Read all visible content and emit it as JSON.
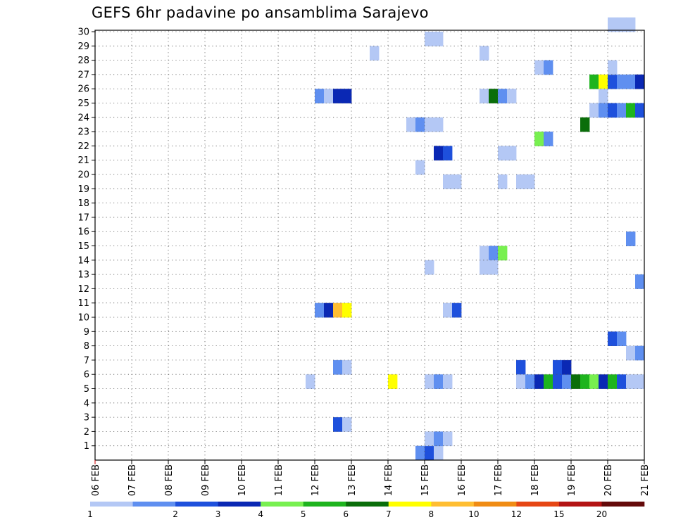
{
  "chart_data": {
    "type": "heatmap",
    "title": "GEFS 6hr padavine po ansamblima Sarajevo",
    "x_tick_labels": [
      "06 FEB",
      "07 FEB",
      "08 FEB",
      "09 FEB",
      "10 FEB",
      "11 FEB",
      "12 FEB",
      "13 FEB",
      "14 FEB",
      "15 FEB",
      "16 FEB",
      "17 FEB",
      "18 FEB",
      "19 FEB",
      "20 FEB",
      "21 FEB"
    ],
    "y_tick_labels": [
      "1",
      "2",
      "3",
      "4",
      "5",
      "6",
      "7",
      "8",
      "9",
      "10",
      "11",
      "12",
      "13",
      "14",
      "15",
      "16",
      "17",
      "18",
      "19",
      "20",
      "21",
      "22",
      "23",
      "24",
      "25",
      "26",
      "27",
      "28",
      "29",
      "30"
    ],
    "ylim": [
      0,
      30
    ],
    "grid": true,
    "colorbar": {
      "labels": [
        "1",
        "2",
        "3",
        "4",
        "5",
        "6",
        "7",
        "8",
        "10",
        "12",
        "15",
        "20"
      ],
      "colors": [
        "#b4c8f5",
        "#5f8ff0",
        "#1e50dc",
        "#0a28b4",
        "#78f050",
        "#1eb41e",
        "#0a6e0a",
        "#ffff00",
        "#ffbe32",
        "#f08c14",
        "#e64614",
        "#b41414",
        "#640a0a"
      ]
    },
    "cells_note": "day = fractional day offset from 06 FEB (6-hour steps), member = ensemble member row, v = precipitation mm",
    "cells": [
      {
        "day": 5.75,
        "member": 5,
        "v": 1.5
      },
      {
        "day": 6.0,
        "member": 10,
        "v": 2.5
      },
      {
        "day": 6.25,
        "member": 10,
        "v": 4.5
      },
      {
        "day": 6.5,
        "member": 10,
        "v": 11
      },
      {
        "day": 6.75,
        "member": 10,
        "v": 9
      },
      {
        "day": 6.0,
        "member": 25,
        "v": 2.5
      },
      {
        "day": 6.25,
        "member": 25,
        "v": 1.5
      },
      {
        "day": 6.5,
        "member": 25,
        "v": 4.5
      },
      {
        "day": 6.75,
        "member": 25,
        "v": 4.5
      },
      {
        "day": 6.5,
        "member": 6,
        "v": 2.5
      },
      {
        "day": 6.75,
        "member": 6,
        "v": 1.5
      },
      {
        "day": 6.5,
        "member": 2,
        "v": 3.5
      },
      {
        "day": 6.75,
        "member": 2,
        "v": 1.5
      },
      {
        "day": 7.5,
        "member": 28,
        "v": 1.5
      },
      {
        "day": 8.0,
        "member": 5,
        "v": 9
      },
      {
        "day": 8.5,
        "member": 23,
        "v": 1.5
      },
      {
        "day": 8.75,
        "member": 23,
        "v": 2.5
      },
      {
        "day": 8.75,
        "member": 20,
        "v": 1.5
      },
      {
        "day": 8.75,
        "member": 0,
        "v": 2.5
      },
      {
        "day": 9.0,
        "member": 0,
        "v": 3.5
      },
      {
        "day": 9.25,
        "member": 0,
        "v": 1.5
      },
      {
        "day": 9.0,
        "member": 29,
        "v": 1.5
      },
      {
        "day": 9.25,
        "member": 29,
        "v": 1.5
      },
      {
        "day": 9.0,
        "member": 23,
        "v": 1.5
      },
      {
        "day": 9.25,
        "member": 23,
        "v": 1.5
      },
      {
        "day": 9.0,
        "member": 13,
        "v": 1.5
      },
      {
        "day": 9.0,
        "member": 5,
        "v": 1.5
      },
      {
        "day": 9.25,
        "member": 5,
        "v": 2.5
      },
      {
        "day": 9.5,
        "member": 5,
        "v": 1.5
      },
      {
        "day": 9.0,
        "member": 1,
        "v": 1.5
      },
      {
        "day": 9.25,
        "member": 1,
        "v": 2.5
      },
      {
        "day": 9.25,
        "member": 21,
        "v": 4.5
      },
      {
        "day": 9.5,
        "member": 21,
        "v": 3.5
      },
      {
        "day": 9.5,
        "member": 19,
        "v": 1.5
      },
      {
        "day": 9.75,
        "member": 19,
        "v": 1.5
      },
      {
        "day": 9.5,
        "member": 10,
        "v": 1.5
      },
      {
        "day": 9.75,
        "member": 10,
        "v": 3.5
      },
      {
        "day": 9.5,
        "member": 1,
        "v": 1.5
      },
      {
        "day": 10.5,
        "member": 28,
        "v": 1.5
      },
      {
        "day": 10.5,
        "member": 25,
        "v": 1.5
      },
      {
        "day": 10.75,
        "member": 25,
        "v": 7.5
      },
      {
        "day": 11.0,
        "member": 25,
        "v": 2.5
      },
      {
        "day": 11.25,
        "member": 25,
        "v": 1.5
      },
      {
        "day": 11.0,
        "member": 21,
        "v": 1.5
      },
      {
        "day": 11.25,
        "member": 21,
        "v": 1.5
      },
      {
        "day": 11.0,
        "member": 19,
        "v": 1.5
      },
      {
        "day": 10.5,
        "member": 14,
        "v": 1.5
      },
      {
        "day": 10.75,
        "member": 14,
        "v": 2.5
      },
      {
        "day": 11.0,
        "member": 14,
        "v": 5.5
      },
      {
        "day": 10.5,
        "member": 13,
        "v": 1.5
      },
      {
        "day": 10.75,
        "member": 13,
        "v": 1.5
      },
      {
        "day": 11.5,
        "member": 19,
        "v": 1.5
      },
      {
        "day": 11.75,
        "member": 19,
        "v": 1.5
      },
      {
        "day": 11.5,
        "member": 6,
        "v": 3.5
      },
      {
        "day": 11.5,
        "member": 5,
        "v": 1.5
      },
      {
        "day": 11.75,
        "member": 5,
        "v": 2.5
      },
      {
        "day": 12.0,
        "member": 5,
        "v": 4.5
      },
      {
        "day": 12.25,
        "member": 5,
        "v": 6.5
      },
      {
        "day": 12.5,
        "member": 5,
        "v": 3.5
      },
      {
        "day": 12.75,
        "member": 5,
        "v": 2.5
      },
      {
        "day": 12.0,
        "member": 27,
        "v": 1.5
      },
      {
        "day": 12.25,
        "member": 27,
        "v": 2.5
      },
      {
        "day": 12.0,
        "member": 22,
        "v": 5.5
      },
      {
        "day": 12.25,
        "member": 22,
        "v": 2.5
      },
      {
        "day": 12.5,
        "member": 6,
        "v": 3.5
      },
      {
        "day": 12.75,
        "member": 6,
        "v": 4.5
      },
      {
        "day": 13.0,
        "member": 5,
        "v": 7.5
      },
      {
        "day": 13.25,
        "member": 5,
        "v": 6.5
      },
      {
        "day": 13.5,
        "member": 5,
        "v": 5.5
      },
      {
        "day": 13.75,
        "member": 5,
        "v": 4.5
      },
      {
        "day": 14.0,
        "member": 5,
        "v": 6.5
      },
      {
        "day": 14.25,
        "member": 5,
        "v": 3.5
      },
      {
        "day": 14.5,
        "member": 5,
        "v": 1.5
      },
      {
        "day": 14.75,
        "member": 5,
        "v": 1.5
      },
      {
        "day": 13.25,
        "member": 23,
        "v": 7.5
      },
      {
        "day": 13.5,
        "member": 26,
        "v": 6.5
      },
      {
        "day": 13.75,
        "member": 26,
        "v": 9
      },
      {
        "day": 14.0,
        "member": 26,
        "v": 3.5
      },
      {
        "day": 14.25,
        "member": 26,
        "v": 2.5
      },
      {
        "day": 14.5,
        "member": 26,
        "v": 2.5
      },
      {
        "day": 14.75,
        "member": 26,
        "v": 4.5
      },
      {
        "day": 13.75,
        "member": 25,
        "v": 1.5
      },
      {
        "day": 13.5,
        "member": 24,
        "v": 1.5
      },
      {
        "day": 13.75,
        "member": 24,
        "v": 2.5
      },
      {
        "day": 14.0,
        "member": 24,
        "v": 3.5
      },
      {
        "day": 14.25,
        "member": 24,
        "v": 2.5
      },
      {
        "day": 14.5,
        "member": 24,
        "v": 6.5
      },
      {
        "day": 14.75,
        "member": 24,
        "v": 3.5
      },
      {
        "day": 14.0,
        "member": 30,
        "v": 1.5
      },
      {
        "day": 14.25,
        "member": 30,
        "v": 1.5
      },
      {
        "day": 14.5,
        "member": 30,
        "v": 1.5
      },
      {
        "day": 14.0,
        "member": 27,
        "v": 1.5
      },
      {
        "day": 14.0,
        "member": 8,
        "v": 3.5
      },
      {
        "day": 14.25,
        "member": 8,
        "v": 2.5
      },
      {
        "day": 14.5,
        "member": 15,
        "v": 2.5
      },
      {
        "day": 14.75,
        "member": 12,
        "v": 2.5
      },
      {
        "day": 14.5,
        "member": 7,
        "v": 1.5
      },
      {
        "day": 14.75,
        "member": 7,
        "v": 2.5
      }
    ]
  }
}
